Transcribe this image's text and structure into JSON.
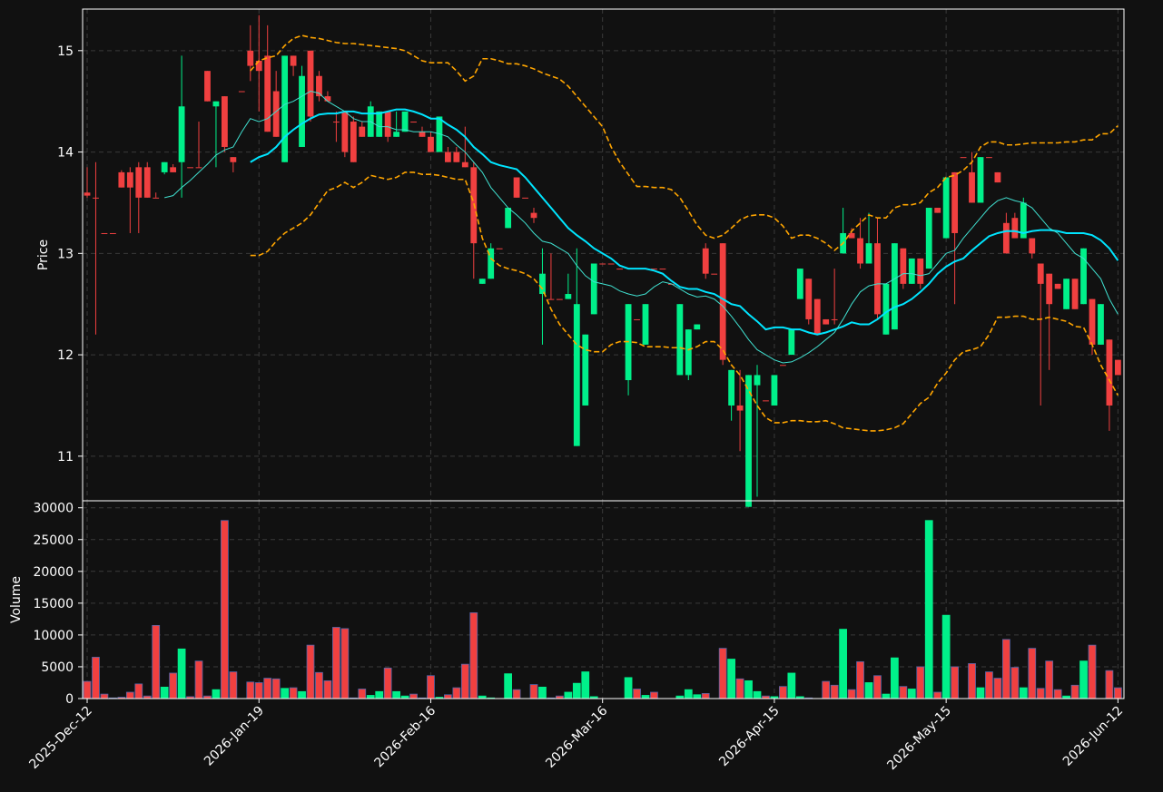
{
  "chart_data": {
    "type": "candlestick",
    "ylabel": "Price",
    "ylim": [
      10.56,
      15.41
    ],
    "yticks": [
      11,
      12,
      13,
      14,
      15
    ],
    "grid": true,
    "up_color": "#00f08a",
    "down_color": "#f04040",
    "categories": [
      "2025-Dec-12",
      null,
      null,
      null,
      null,
      null,
      null,
      null,
      null,
      null,
      null,
      null,
      null,
      null,
      null,
      null,
      null,
      null,
      null,
      null,
      "2026-Jan-19",
      null,
      null,
      null,
      null,
      null,
      null,
      null,
      null,
      null,
      null,
      null,
      null,
      null,
      null,
      null,
      null,
      null,
      null,
      null,
      "2026-Feb-16",
      null,
      null,
      null,
      null,
      null,
      null,
      null,
      null,
      null,
      null,
      null,
      null,
      null,
      null,
      null,
      null,
      null,
      null,
      null,
      "2026-Mar-16",
      null,
      null,
      null,
      null,
      null,
      null,
      null,
      null,
      null,
      null,
      null,
      null,
      null,
      null,
      null,
      null,
      null,
      null,
      null,
      "2026-Apr-15",
      null,
      null,
      null,
      null,
      null,
      null,
      null,
      null,
      null,
      null,
      null,
      null,
      null,
      null,
      null,
      null,
      null,
      null,
      null,
      "2026-May-15",
      null,
      null,
      null,
      null,
      null,
      null,
      null,
      null,
      null,
      null,
      null,
      null,
      null,
      null,
      null,
      null,
      null,
      null,
      null,
      "2026-Jun-12"
    ],
    "open": [
      13.6,
      13.55,
      13.2,
      13.2,
      13.8,
      13.8,
      13.85,
      13.85,
      13.55,
      13.8,
      13.85,
      13.9,
      13.85,
      13.85,
      14.8,
      14.45,
      14.55,
      13.95,
      14.6,
      15.0,
      14.9,
      14.95,
      14.6,
      13.9,
      14.95,
      14.05,
      15.0,
      14.75,
      14.55,
      14.3,
      14.4,
      14.3,
      14.25,
      14.15,
      14.15,
      14.4,
      14.15,
      14.2,
      14.3,
      14.2,
      14.15,
      14.0,
      14.0,
      14.0,
      13.9,
      13.85,
      12.7,
      12.75,
      13.05,
      13.25,
      13.75,
      13.55,
      13.4,
      12.6,
      12.55,
      12.55,
      12.55,
      11.1,
      11.5,
      12.4,
      12.9,
      12.9,
      12.85,
      11.75,
      12.35,
      12.1,
      12.85,
      12.85,
      12.7,
      11.8,
      11.8,
      12.25,
      13.05,
      12.8,
      13.1,
      11.5,
      11.5,
      10.5,
      11.7,
      11.55,
      11.5,
      11.9,
      12.0,
      12.55,
      12.75,
      12.55,
      12.35,
      12.35,
      13.0,
      13.2,
      13.15,
      12.9,
      13.1,
      12.2,
      12.25,
      13.05,
      12.7,
      12.95,
      12.85,
      13.45,
      13.15,
      13.8,
      13.95,
      13.8,
      13.5,
      13.95,
      13.8,
      13.3,
      13.35,
      13.15,
      13.15,
      12.9,
      12.8,
      12.7,
      12.45,
      12.75,
      12.5,
      12.55,
      12.1,
      12.15,
      11.95
    ],
    "high": [
      13.85,
      13.9,
      13.2,
      13.2,
      13.82,
      13.85,
      13.9,
      13.9,
      13.6,
      13.9,
      13.88,
      14.95,
      13.85,
      14.3,
      14.8,
      14.5,
      14.55,
      13.95,
      14.6,
      15.25,
      15.35,
      15.25,
      14.8,
      14.95,
      14.95,
      14.85,
      15.0,
      14.8,
      14.6,
      14.4,
      14.4,
      14.35,
      14.3,
      14.5,
      14.4,
      14.4,
      14.4,
      14.4,
      14.3,
      14.25,
      14.2,
      14.35,
      14.05,
      14.05,
      14.25,
      13.9,
      12.75,
      13.1,
      13.05,
      13.45,
      13.75,
      13.55,
      13.45,
      13.05,
      13.0,
      12.55,
      12.8,
      13.05,
      12.2,
      12.9,
      12.9,
      12.9,
      12.85,
      12.5,
      12.35,
      12.5,
      12.85,
      12.85,
      12.7,
      12.5,
      12.25,
      12.3,
      13.1,
      12.8,
      13.1,
      11.85,
      11.85,
      11.8,
      11.9,
      11.55,
      11.8,
      11.9,
      12.25,
      12.85,
      12.75,
      12.55,
      12.35,
      12.85,
      13.45,
      13.25,
      13.35,
      13.4,
      13.35,
      12.7,
      13.1,
      13.05,
      12.95,
      12.95,
      13.45,
      13.45,
      13.75,
      13.8,
      13.95,
      14.0,
      13.95,
      13.95,
      13.8,
      13.4,
      13.4,
      13.55,
      13.15,
      12.9,
      12.8,
      12.7,
      12.75,
      12.75,
      13.05,
      12.55,
      12.5,
      12.15,
      11.95
    ],
    "low": [
      13.55,
      12.2,
      13.2,
      13.2,
      13.65,
      13.2,
      13.2,
      13.55,
      13.55,
      13.78,
      13.8,
      13.55,
      13.85,
      13.85,
      14.5,
      13.85,
      14.0,
      13.8,
      14.6,
      14.7,
      14.4,
      14.2,
      14.15,
      13.9,
      14.75,
      14.05,
      14.3,
      14.5,
      14.5,
      14.1,
      13.95,
      13.9,
      14.15,
      14.15,
      14.15,
      14.1,
      14.15,
      14.2,
      14.3,
      14.15,
      14.0,
      14.0,
      13.9,
      13.9,
      13.85,
      12.75,
      12.7,
      12.75,
      13.05,
      13.25,
      13.55,
      13.55,
      13.3,
      12.1,
      12.55,
      12.55,
      12.55,
      11.1,
      11.5,
      12.4,
      12.9,
      12.9,
      12.85,
      11.6,
      12.35,
      12.1,
      12.85,
      12.85,
      12.7,
      11.8,
      11.75,
      12.25,
      12.75,
      12.8,
      11.9,
      11.35,
      11.05,
      10.5,
      10.6,
      11.55,
      11.5,
      11.9,
      12.0,
      12.55,
      12.3,
      12.2,
      12.3,
      12.3,
      13.0,
      13.15,
      12.85,
      12.9,
      12.35,
      12.2,
      12.25,
      12.65,
      12.7,
      12.65,
      12.85,
      13.4,
      13.15,
      12.5,
      13.95,
      13.5,
      13.5,
      13.95,
      13.7,
      13.0,
      13.15,
      13.15,
      12.95,
      11.5,
      11.85,
      12.65,
      12.45,
      12.45,
      12.5,
      12.0,
      12.1,
      11.25,
      11.8
    ],
    "close": [
      13.57,
      13.55,
      13.2,
      13.2,
      13.65,
      13.65,
      13.55,
      13.55,
      13.55,
      13.9,
      13.8,
      14.45,
      13.85,
      13.85,
      14.5,
      14.5,
      14.05,
      13.9,
      14.6,
      14.85,
      14.8,
      14.2,
      14.15,
      14.95,
      14.85,
      14.75,
      14.35,
      14.55,
      14.5,
      14.3,
      14.0,
      13.9,
      14.15,
      14.45,
      14.4,
      14.15,
      14.2,
      14.4,
      14.3,
      14.15,
      14.0,
      14.35,
      13.9,
      13.9,
      13.85,
      13.1,
      12.75,
      13.05,
      13.05,
      13.45,
      13.55,
      13.55,
      13.35,
      12.8,
      12.55,
      12.55,
      12.6,
      12.5,
      12.2,
      12.9,
      12.9,
      12.9,
      12.85,
      12.5,
      12.35,
      12.5,
      12.85,
      12.85,
      12.7,
      12.5,
      12.25,
      12.3,
      12.8,
      12.8,
      11.95,
      11.85,
      11.45,
      11.8,
      11.8,
      11.55,
      11.8,
      11.9,
      12.25,
      12.85,
      12.35,
      12.2,
      12.3,
      12.35,
      13.2,
      13.15,
      12.9,
      13.1,
      12.4,
      12.7,
      13.1,
      12.7,
      12.95,
      12.7,
      13.45,
      13.4,
      13.75,
      13.2,
      13.95,
      13.5,
      13.95,
      13.95,
      13.7,
      13.0,
      13.15,
      13.5,
      13.0,
      12.7,
      12.5,
      12.65,
      12.75,
      12.45,
      13.05,
      12.1,
      12.5,
      11.5,
      11.8
    ],
    "lines": [
      {
        "color": "#00e5ff",
        "width": 2,
        "dashed": false,
        "values": [
          null,
          null,
          null,
          null,
          null,
          null,
          null,
          null,
          null,
          null,
          null,
          null,
          null,
          null,
          null,
          null,
          null,
          null,
          null,
          13.9,
          13.95,
          13.98,
          14.05,
          14.15,
          14.22,
          14.28,
          14.33,
          14.37,
          14.38,
          14.38,
          14.4,
          14.4,
          14.38,
          14.38,
          14.38,
          14.4,
          14.42,
          14.42,
          14.4,
          14.37,
          14.33,
          14.33,
          14.27,
          14.22,
          14.15,
          14.05,
          13.98,
          13.9,
          13.87,
          13.85,
          13.83,
          13.75,
          13.65,
          13.55,
          13.45,
          13.35,
          13.25,
          13.18,
          13.12,
          13.05,
          13.0,
          12.95,
          12.88,
          12.85,
          12.85,
          12.85,
          12.83,
          12.8,
          12.73,
          12.67,
          12.65,
          12.65,
          12.62,
          12.6,
          12.55,
          12.5,
          12.48,
          12.4,
          12.33,
          12.25,
          12.27,
          12.27,
          12.25,
          12.25,
          12.22,
          12.2,
          12.22,
          12.25,
          12.28,
          12.32,
          12.3,
          12.3,
          12.35,
          12.42,
          12.47,
          12.5,
          12.55,
          12.62,
          12.7,
          12.8,
          12.87,
          12.92,
          12.95,
          13.03,
          13.1,
          13.17,
          13.2,
          13.22,
          13.22,
          13.2,
          13.22,
          13.23,
          13.23,
          13.22,
          13.2,
          13.2,
          13.2,
          13.18,
          13.13,
          13.05,
          12.93
        ]
      },
      {
        "color": "#40e0d0",
        "width": 1,
        "dashed": false,
        "values": [
          null,
          null,
          null,
          null,
          null,
          null,
          null,
          null,
          null,
          13.55,
          13.57,
          13.65,
          13.72,
          13.8,
          13.88,
          13.97,
          14.02,
          14.05,
          14.2,
          14.33,
          14.3,
          14.33,
          14.4,
          14.47,
          14.5,
          14.55,
          14.6,
          14.58,
          14.5,
          14.45,
          14.4,
          14.33,
          14.3,
          14.3,
          14.25,
          14.25,
          14.22,
          14.22,
          14.2,
          14.2,
          14.2,
          14.18,
          14.15,
          14.07,
          14.0,
          13.9,
          13.8,
          13.65,
          13.55,
          13.45,
          13.38,
          13.3,
          13.2,
          13.12,
          13.1,
          13.05,
          13.0,
          12.88,
          12.78,
          12.72,
          12.7,
          12.68,
          12.63,
          12.6,
          12.58,
          12.6,
          12.67,
          12.72,
          12.7,
          12.65,
          12.6,
          12.57,
          12.58,
          12.55,
          12.48,
          12.38,
          12.27,
          12.15,
          12.05,
          12.0,
          11.95,
          11.92,
          11.93,
          11.97,
          12.02,
          12.08,
          12.15,
          12.22,
          12.35,
          12.5,
          12.62,
          12.68,
          12.7,
          12.7,
          12.75,
          12.8,
          12.8,
          12.78,
          12.8,
          12.9,
          13.0,
          13.03,
          13.15,
          13.25,
          13.35,
          13.45,
          13.52,
          13.55,
          13.52,
          13.5,
          13.45,
          13.35,
          13.25,
          13.2,
          13.1,
          13.0,
          12.95,
          12.85,
          12.75,
          12.55,
          12.4
        ]
      },
      {
        "color": "#ffa500",
        "width": 1.6,
        "dashed": true,
        "values": [
          null,
          null,
          null,
          null,
          null,
          null,
          null,
          null,
          null,
          null,
          null,
          null,
          null,
          null,
          null,
          null,
          null,
          null,
          null,
          14.8,
          14.9,
          14.93,
          14.95,
          15.05,
          15.12,
          15.15,
          15.13,
          15.12,
          15.1,
          15.08,
          15.07,
          15.07,
          15.06,
          15.05,
          15.04,
          15.03,
          15.02,
          15.0,
          14.95,
          14.9,
          14.88,
          14.88,
          14.88,
          14.8,
          14.7,
          14.75,
          14.92,
          14.92,
          14.9,
          14.87,
          14.87,
          14.85,
          14.82,
          14.78,
          14.75,
          14.72,
          14.65,
          14.55,
          14.45,
          14.35,
          14.25,
          14.05,
          13.9,
          13.78,
          13.66,
          13.66,
          13.65,
          13.65,
          13.63,
          13.55,
          13.42,
          13.28,
          13.18,
          13.15,
          13.18,
          13.25,
          13.33,
          13.37,
          13.38,
          13.38,
          13.35,
          13.27,
          13.15,
          13.18,
          13.18,
          13.15,
          13.1,
          13.03,
          13.1,
          13.22,
          13.3,
          13.38,
          13.35,
          13.35,
          13.45,
          13.48,
          13.48,
          13.5,
          13.6,
          13.65,
          13.75,
          13.77,
          13.82,
          13.9,
          14.05,
          14.1,
          14.1,
          14.07,
          14.07,
          14.08,
          14.09,
          14.09,
          14.09,
          14.09,
          14.1,
          14.1,
          14.12,
          14.12,
          14.18,
          14.18,
          14.26
        ]
      },
      {
        "color": "#ffa500",
        "width": 1.6,
        "dashed": true,
        "values": [
          null,
          null,
          null,
          null,
          null,
          null,
          null,
          null,
          null,
          null,
          null,
          null,
          null,
          null,
          null,
          null,
          null,
          null,
          null,
          12.98,
          12.98,
          13.02,
          13.12,
          13.2,
          13.25,
          13.3,
          13.38,
          13.5,
          13.62,
          13.65,
          13.7,
          13.65,
          13.7,
          13.77,
          13.75,
          13.73,
          13.75,
          13.8,
          13.8,
          13.78,
          13.78,
          13.77,
          13.75,
          13.73,
          13.73,
          13.5,
          13.15,
          12.95,
          12.88,
          12.85,
          12.83,
          12.8,
          12.75,
          12.65,
          12.45,
          12.3,
          12.2,
          12.1,
          12.05,
          12.03,
          12.03,
          12.1,
          12.13,
          12.13,
          12.12,
          12.08,
          12.08,
          12.08,
          12.07,
          12.07,
          12.05,
          12.08,
          12.13,
          12.13,
          12.05,
          11.9,
          11.8,
          11.65,
          11.5,
          11.38,
          11.33,
          11.33,
          11.35,
          11.35,
          11.34,
          11.34,
          11.35,
          11.32,
          11.28,
          11.27,
          11.26,
          11.25,
          11.25,
          11.26,
          11.28,
          11.32,
          11.42,
          11.52,
          11.58,
          11.72,
          11.82,
          11.95,
          12.03,
          12.05,
          12.08,
          12.2,
          12.37,
          12.37,
          12.38,
          12.38,
          12.35,
          12.35,
          12.37,
          12.35,
          12.33,
          12.28,
          12.27,
          12.1,
          11.9,
          11.75,
          11.6
        ]
      }
    ],
    "volume": {
      "ylabel": "Volume",
      "ylim": [
        0,
        31100
      ],
      "yticks": [
        0,
        5000,
        10000,
        15000,
        20000,
        25000,
        30000
      ],
      "values": [
        2700,
        6500,
        700,
        100,
        200,
        1000,
        2300,
        400,
        11500,
        1800,
        4000,
        7800,
        300,
        5900,
        400,
        1400,
        28000,
        4200,
        0,
        2600,
        2500,
        3200,
        3100,
        1600,
        1700,
        1100,
        8400,
        4100,
        2800,
        11200,
        11000,
        100,
        1500,
        500,
        1100,
        4800,
        1100,
        400,
        700,
        100,
        3600,
        200,
        600,
        1700,
        5400,
        13500,
        400,
        100,
        0,
        3900,
        1400,
        0,
        2200,
        1800,
        100,
        400,
        1000,
        2400,
        4200,
        300,
        0,
        0,
        0,
        3300,
        1500,
        500,
        1000,
        0,
        0,
        400,
        1400,
        600,
        800,
        0,
        7900,
        6200,
        3100,
        2800,
        1100,
        400,
        300,
        1900,
        4000,
        300,
        100,
        0,
        2700,
        2100,
        10900,
        1400,
        5800,
        2500,
        3600,
        700,
        6400,
        1900,
        1500,
        5000,
        28000,
        1000,
        13100,
        5000,
        0,
        5500,
        1700,
        4200,
        3200,
        9300,
        4900,
        1700,
        7900,
        1600,
        5900,
        1400,
        400,
        2100,
        5900,
        8400,
        0,
        4400,
        1700
      ]
    }
  }
}
